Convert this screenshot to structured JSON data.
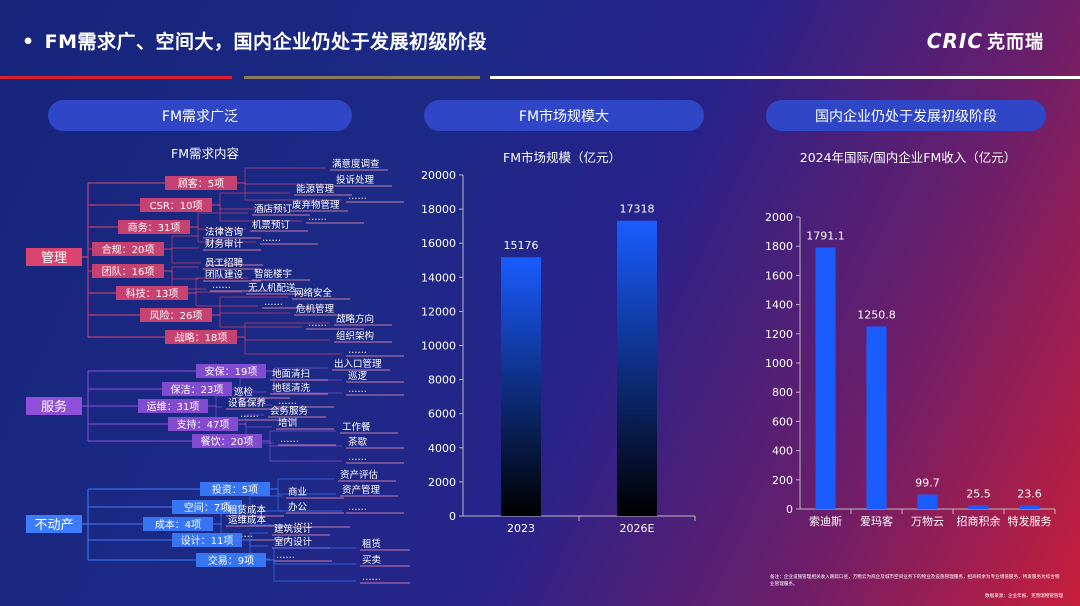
{
  "header": {
    "bullet": "•",
    "title": "FM需求广、空间大，国内企业仍处于发展初级阶段",
    "logo_en": "CRIC",
    "logo_cn": "克而瑞"
  },
  "sections": {
    "left_pill": "FM需求广泛",
    "middle_pill": "FM市场规模大",
    "right_pill": "国内企业仍处于发展初级阶段"
  },
  "tree": {
    "title": "FM需求内容",
    "roots": [
      {
        "label": "管理",
        "children": [
          {
            "label": "顾客：5项",
            "leaves": [
              "满意度调查",
              "投诉处理",
              "……"
            ]
          },
          {
            "label": "CSR：10项",
            "leaves": [
              "能源管理",
              "废弃物管理",
              "……"
            ]
          },
          {
            "label": "商务：31项",
            "leaves": [
              "酒店预订",
              "机票预订",
              "……"
            ]
          },
          {
            "label": "合规：20项",
            "leaves": [
              "法律咨询",
              "财务审计",
              "……"
            ]
          },
          {
            "label": "团队：16项",
            "leaves": [
              "员工招聘",
              "团队建设",
              "……"
            ]
          },
          {
            "label": "科技：13项",
            "leaves": [
              "智能楼宇",
              "无人机配送",
              "……"
            ]
          },
          {
            "label": "风险：26项",
            "leaves": [
              "网络安全",
              "危机管理",
              "……"
            ]
          },
          {
            "label": "战略：18项",
            "leaves": [
              "战略方向",
              "组织架构",
              "……"
            ]
          }
        ]
      },
      {
        "label": "服务",
        "children": [
          {
            "label": "安保：19项",
            "leaves": [
              "出入口管理",
              "巡逻",
              "……"
            ]
          },
          {
            "label": "保洁：23项",
            "leaves": [
              "地面清扫",
              "地毯清洗",
              "……"
            ]
          },
          {
            "label": "运维：31项",
            "leaves": [
              "巡检",
              "设备保养",
              "……"
            ]
          },
          {
            "label": "支持：47项",
            "leaves": [
              "会务服务",
              "培训",
              "……"
            ]
          },
          {
            "label": "餐饮：20项",
            "leaves": [
              "工作餐",
              "茶歇",
              "……"
            ]
          }
        ]
      },
      {
        "label": "不动产",
        "children": [
          {
            "label": "投资：5项",
            "leaves": [
              "资产评估",
              "资产管理",
              "……"
            ]
          },
          {
            "label": "空间：7项",
            "leaves": [
              "商业",
              "办公",
              "……"
            ]
          },
          {
            "label": "成本：4项",
            "leaves": [
              "租赁成本",
              "运维成本",
              "……"
            ]
          },
          {
            "label": "设计：11项",
            "leaves": [
              "建筑设计",
              "室内设计",
              "……"
            ]
          },
          {
            "label": "交易：9项",
            "leaves": [
              "租赁",
              "买卖",
              "……"
            ]
          }
        ]
      }
    ]
  },
  "chart_data": [
    {
      "type": "bar",
      "title": "FM市场规模（亿元）",
      "categories": [
        "2023",
        "2026E"
      ],
      "values": [
        15176,
        17318
      ],
      "ylim": [
        0,
        20000
      ],
      "yticks": [
        0,
        2000,
        4000,
        6000,
        8000,
        10000,
        12000,
        14000,
        16000,
        18000,
        20000
      ],
      "value_labels": [
        "15176",
        "17318"
      ],
      "grid": false,
      "bar_color_top": "#1a5cff",
      "bar_color_bottom": "#000000"
    },
    {
      "type": "bar",
      "title": "2024年国际/国内企业FM收入（亿元）",
      "categories": [
        "索迪斯",
        "爱玛客",
        "万物云",
        "招商积余",
        "特发服务"
      ],
      "values": [
        1791.1,
        1250.8,
        99.7,
        25.5,
        23.6
      ],
      "ylim": [
        0,
        2000
      ],
      "yticks": [
        0,
        200,
        400,
        600,
        800,
        1000,
        1200,
        1400,
        1600,
        1800,
        2000
      ],
      "value_labels": [
        "1791.1",
        "1250.8",
        "99.7",
        "25.5",
        "23.6"
      ],
      "grid": false,
      "bar_color": "#1a5cff"
    }
  ],
  "footer": {
    "note": "备注：企业设施管理相关收入跟踪口径，万物云为商企及城市空间业务下的物业及设施管理服务，招商积余为专业增值服务，特发服务为综合物业管理服务。",
    "source": "数据来源：企业年报、克而瑞物管管理"
  },
  "colors": {
    "pill": "#2f46c7",
    "tree_pink": "#ff5c8a",
    "tree_purple": "#a066ff",
    "tree_blue": "#3c7dff",
    "rule_red": "#d8202e",
    "rule_gold": "#8c7a5a",
    "rule_white": "#ffffff"
  }
}
